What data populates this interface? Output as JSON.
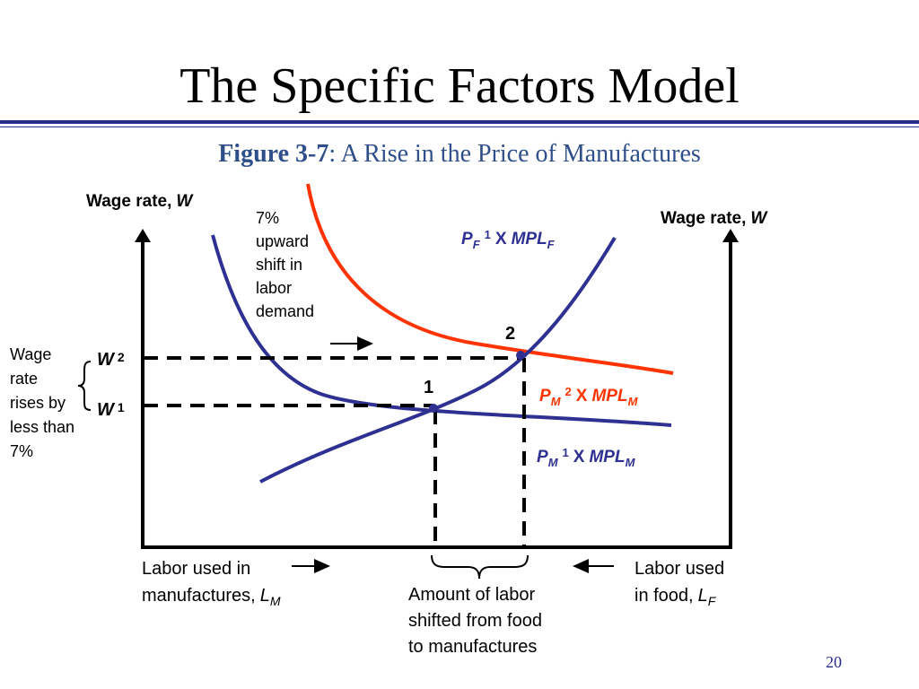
{
  "slide": {
    "title": "The Specific Factors Model",
    "figure_label": "Figure 3-7",
    "figure_caption": ": A Rise in the Price of Manufactures",
    "page_number": "20"
  },
  "axes": {
    "left_label": "Wage rate,",
    "left_label_var": "W",
    "right_label": "Wage rate,",
    "right_label_var": "W",
    "bottom_left_line1": "Labor used in",
    "bottom_left_line2": "manufactures,",
    "bottom_left_var": "L",
    "bottom_left_sub": "M",
    "bottom_right_line1": "Labor used",
    "bottom_right_line2": "in food,",
    "bottom_right_var": "L",
    "bottom_right_sub": "F"
  },
  "curves": {
    "pf": {
      "p": "P",
      "psub": "F",
      "sup": "1",
      "x": "X",
      "mpl": "MPL",
      "mplsub": "F",
      "color": "#2e3192"
    },
    "pm2": {
      "p": "P",
      "psub": "M",
      "sup": "2",
      "x": "X",
      "mpl": "MPL",
      "mplsub": "M",
      "color": "#ff3300"
    },
    "pm1": {
      "p": "P",
      "psub": "M",
      "sup": "1",
      "x": "X",
      "mpl": "MPL",
      "mplsub": "M",
      "color": "#2e3192"
    }
  },
  "points": {
    "p1": "1",
    "p2": "2"
  },
  "wages": {
    "w2": "W",
    "w2_sup": "2",
    "w1": "W",
    "w1_sup": "1"
  },
  "annotations": {
    "shift": [
      "7%",
      "upward",
      "shift in",
      "labor",
      "demand"
    ],
    "wage_rise": [
      "Wage",
      "rate",
      "rises by",
      "less than",
      "7%"
    ],
    "labor_shift": [
      "Amount of labor",
      "shifted from food",
      "to manufactures"
    ]
  },
  "colors": {
    "axis": "#000000",
    "blue_curve": "#2e3192",
    "red_curve": "#ff3300",
    "title_rule": "#2a2a8a",
    "caption": "#2e4f8a"
  }
}
